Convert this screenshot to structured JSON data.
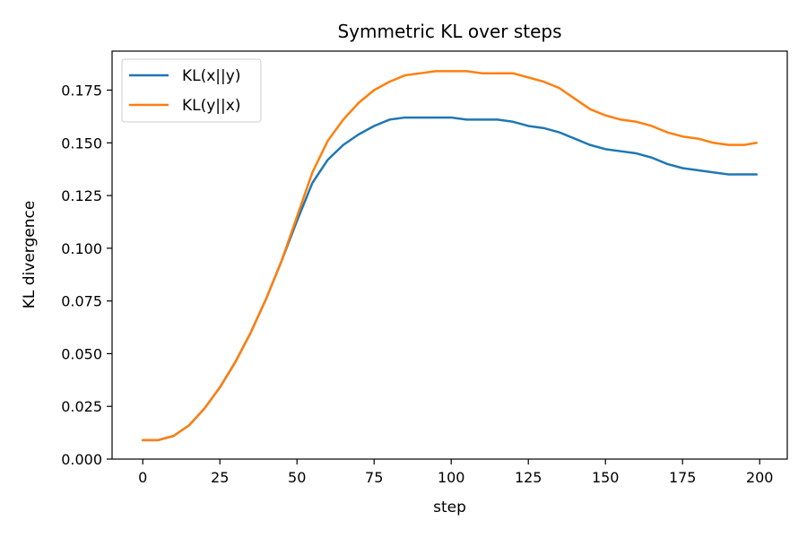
{
  "chart_data": {
    "type": "line",
    "title": "Symmetric KL over steps",
    "xlabel": "step",
    "ylabel": "KL divergence",
    "xlim": [
      -9.95,
      208.95
    ],
    "ylim": [
      0.0,
      0.1935
    ],
    "x_ticks": [
      0,
      25,
      50,
      75,
      100,
      125,
      150,
      175,
      200
    ],
    "x_tick_labels": [
      "0",
      "25",
      "50",
      "75",
      "100",
      "125",
      "150",
      "175",
      "200"
    ],
    "y_ticks": [
      0.0,
      0.025,
      0.05,
      0.075,
      0.1,
      0.125,
      0.15,
      0.175
    ],
    "y_tick_labels": [
      "0.000",
      "0.025",
      "0.050",
      "0.075",
      "0.100",
      "0.125",
      "0.150",
      "0.175"
    ],
    "grid": false,
    "legend_position": "top-left",
    "colors": {
      "series_1": "#1f77b4",
      "series_2": "#ff7f0e"
    },
    "x": [
      0,
      5,
      10,
      15,
      20,
      25,
      30,
      35,
      40,
      45,
      50,
      55,
      60,
      65,
      70,
      75,
      80,
      85,
      90,
      95,
      100,
      105,
      110,
      115,
      120,
      125,
      130,
      135,
      140,
      145,
      150,
      155,
      160,
      165,
      170,
      175,
      180,
      185,
      190,
      195,
      199
    ],
    "series": [
      {
        "name": "KL(x||y)",
        "values": [
          0.009,
          0.009,
          0.011,
          0.016,
          0.024,
          0.034,
          0.046,
          0.06,
          0.076,
          0.094,
          0.113,
          0.131,
          0.142,
          0.149,
          0.154,
          0.158,
          0.161,
          0.162,
          0.162,
          0.162,
          0.162,
          0.161,
          0.161,
          0.161,
          0.16,
          0.158,
          0.157,
          0.155,
          0.152,
          0.149,
          0.147,
          0.146,
          0.145,
          0.143,
          0.14,
          0.138,
          0.137,
          0.136,
          0.135,
          0.135,
          0.135
        ]
      },
      {
        "name": "KL(y||x)",
        "values": [
          0.009,
          0.009,
          0.011,
          0.016,
          0.024,
          0.034,
          0.046,
          0.06,
          0.076,
          0.094,
          0.115,
          0.136,
          0.151,
          0.161,
          0.169,
          0.175,
          0.179,
          0.182,
          0.183,
          0.184,
          0.184,
          0.184,
          0.183,
          0.183,
          0.183,
          0.181,
          0.179,
          0.176,
          0.171,
          0.166,
          0.163,
          0.161,
          0.16,
          0.158,
          0.155,
          0.153,
          0.152,
          0.15,
          0.149,
          0.149,
          0.15
        ]
      }
    ]
  }
}
